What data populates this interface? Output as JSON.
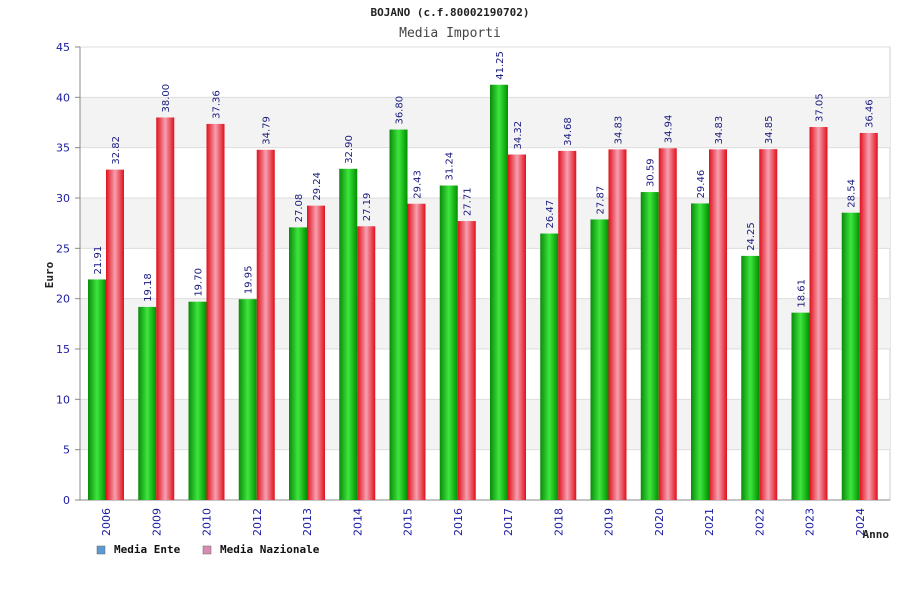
{
  "chart_data": {
    "type": "bar",
    "title": "BOJANO (c.f.80002190702)",
    "subtitle": "Media Importi",
    "ylabel": "Euro",
    "xlabel": "Anno",
    "ylim": [
      0,
      45
    ],
    "yticks": [
      0,
      5,
      10,
      15,
      20,
      25,
      30,
      35,
      40,
      45
    ],
    "grid": true,
    "legend_position": "bottom-left",
    "categories": [
      "2006",
      "2009",
      "2010",
      "2012",
      "2013",
      "2014",
      "2015",
      "2016",
      "2017",
      "2018",
      "2019",
      "2020",
      "2021",
      "2022",
      "2023",
      "2024"
    ],
    "series": [
      {
        "name": "Media Ente",
        "legend_color": "#5b9bd5",
        "bar_color": "#00b000",
        "values": [
          21.91,
          19.18,
          19.7,
          19.95,
          27.08,
          32.9,
          36.8,
          31.24,
          41.25,
          26.47,
          27.87,
          30.59,
          29.46,
          24.25,
          18.61,
          28.54
        ],
        "labels": [
          "21.91",
          "19.18",
          "19.70",
          "19.95",
          "27.08",
          "32.90",
          "36.80",
          "31.24",
          "41.25",
          "26.47",
          "27.87",
          "30.59",
          "29.46",
          "24.25",
          "18.61",
          "28.54"
        ]
      },
      {
        "name": "Media Nazionale",
        "legend_color": "#d98cb3",
        "bar_color": "#e8202a",
        "values": [
          32.82,
          38.0,
          37.36,
          34.79,
          29.24,
          27.19,
          29.43,
          27.71,
          34.32,
          34.68,
          34.83,
          34.94,
          34.83,
          34.85,
          37.05,
          36.46
        ],
        "labels": [
          "32.82",
          "38.00",
          "37.36",
          "34.79",
          "29.24",
          "27.19",
          "29.43",
          "27.71",
          "34.32",
          "34.68",
          "34.83",
          "34.94",
          "34.83",
          "34.85",
          "37.05",
          "36.46"
        ]
      }
    ]
  }
}
